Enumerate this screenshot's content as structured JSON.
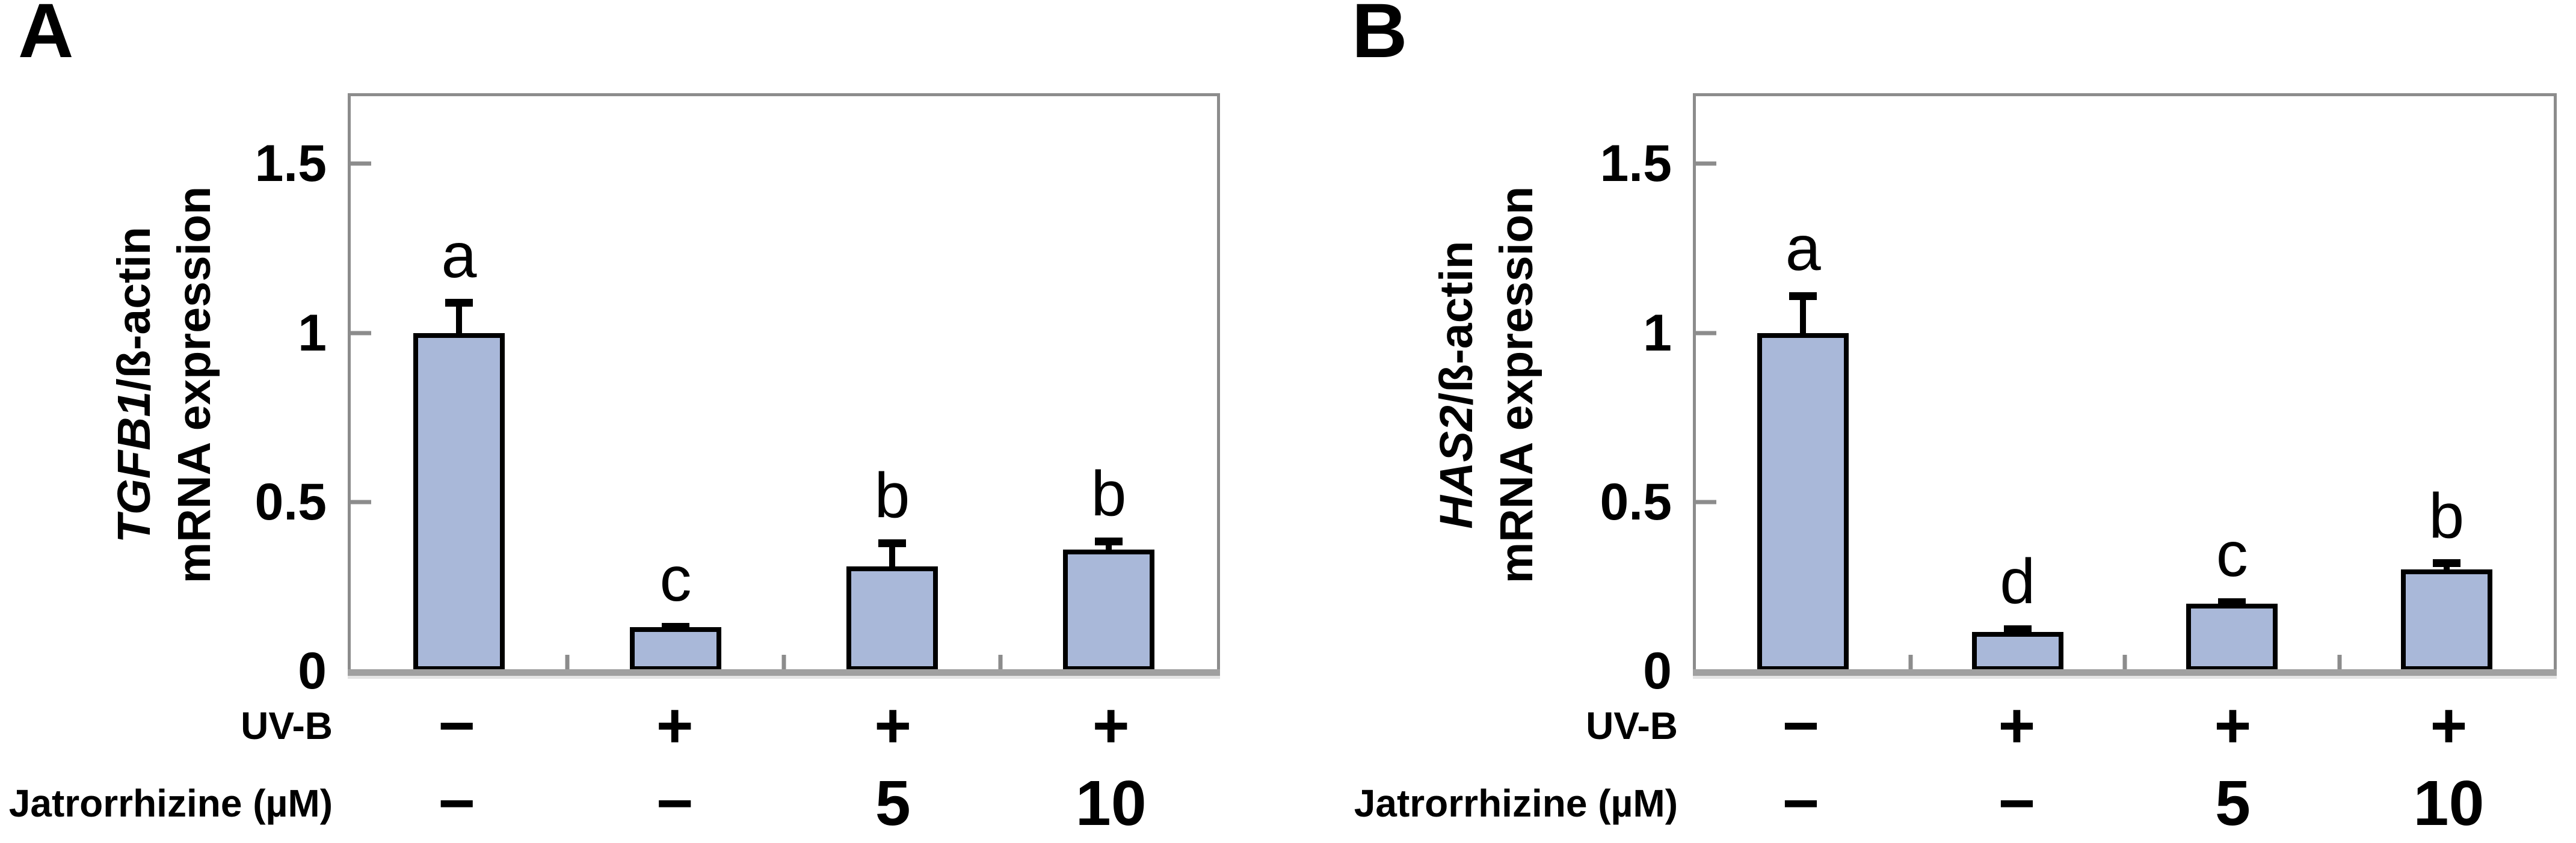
{
  "colors": {
    "bar_fill": "#a9b8d9",
    "bar_border": "#000000",
    "frame": "#8c8c8c",
    "axis_line": "#a0a0a0",
    "tick": "#8c8c8c",
    "text": "#000000"
  },
  "chart_data": [
    {
      "type": "bar",
      "panel_label": "A",
      "y_axis_label": {
        "gene": "TGFB1",
        "suffix": "/ß-actin",
        "line2": "mRNA expression"
      },
      "ylim": [
        0,
        1.7
      ],
      "grid": false,
      "legend": false,
      "yticks": [
        {
          "value": 0,
          "label": "0"
        },
        {
          "value": 0.5,
          "label": "0.5"
        },
        {
          "value": 1,
          "label": "1"
        },
        {
          "value": 1.5,
          "label": "1.5"
        }
      ],
      "bars": [
        {
          "value": 1.0,
          "error": 0.1,
          "letter": "a"
        },
        {
          "value": 0.13,
          "error": 0.012,
          "letter": "c"
        },
        {
          "value": 0.31,
          "error": 0.08,
          "letter": "b"
        },
        {
          "value": 0.36,
          "error": 0.035,
          "letter": "b"
        }
      ],
      "x_rows": [
        {
          "label": "UV-B",
          "values": [
            "−",
            "+",
            "+",
            "+"
          ]
        },
        {
          "label": "Jatrorrhizine (µM)",
          "values": [
            "−",
            "−",
            "5",
            "10"
          ]
        }
      ]
    },
    {
      "type": "bar",
      "panel_label": "B",
      "y_axis_label": {
        "gene": "HAS2",
        "suffix": "/ß-actin",
        "line2": "mRNA expression"
      },
      "ylim": [
        0,
        1.7
      ],
      "grid": false,
      "legend": false,
      "yticks": [
        {
          "value": 0,
          "label": "0"
        },
        {
          "value": 0.5,
          "label": "0.5"
        },
        {
          "value": 1,
          "label": "1"
        },
        {
          "value": 1.5,
          "label": "1.5"
        }
      ],
      "bars": [
        {
          "value": 1.0,
          "error": 0.12,
          "letter": "a"
        },
        {
          "value": 0.115,
          "error": 0.02,
          "letter": "d"
        },
        {
          "value": 0.2,
          "error": 0.015,
          "letter": "c"
        },
        {
          "value": 0.3,
          "error": 0.03,
          "letter": "b"
        }
      ],
      "x_rows": [
        {
          "label": "UV-B",
          "values": [
            "−",
            "+",
            "+",
            "+"
          ]
        },
        {
          "label": "Jatrorrhizine (µM)",
          "values": [
            "−",
            "−",
            "5",
            "10"
          ]
        }
      ]
    }
  ]
}
